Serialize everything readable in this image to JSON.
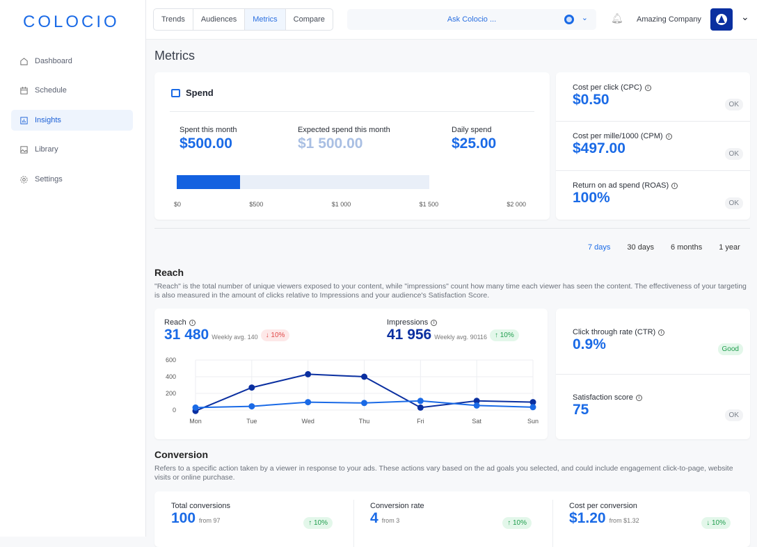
{
  "logo": "COLOCIO",
  "sidebar": {
    "items": [
      {
        "label": "Dashboard",
        "icon": "home-icon"
      },
      {
        "label": "Schedule",
        "icon": "calendar-icon"
      },
      {
        "label": "Insights",
        "icon": "chart-icon"
      },
      {
        "label": "Library",
        "icon": "image-icon"
      },
      {
        "label": "Settings",
        "icon": "gear-icon"
      }
    ]
  },
  "header": {
    "tabs": [
      "Trends",
      "Audiences",
      "Metrics",
      "Compare"
    ],
    "active_tab": "Metrics",
    "ask_placeholder": "Ask Colocio ...",
    "company": "Amazing Company"
  },
  "page_title": "Metrics",
  "spend": {
    "title": "Spend",
    "spent_label": "Spent this month",
    "spent": "$500.00",
    "expected_label": "Expected spend this month",
    "expected": "$1 500.00",
    "daily_label": "Daily spend",
    "daily": "$25.00",
    "progress_fraction": 0.25,
    "axis": [
      "$0",
      "$500",
      "$1 000",
      "$1 500",
      "$2 000"
    ]
  },
  "kpis": [
    {
      "label": "Cost per click (CPC)",
      "value": "$0.50",
      "status": "OK"
    },
    {
      "label": "Cost per mille/1000 (CPM)",
      "value": "$497.00",
      "status": "OK"
    },
    {
      "label": "Return on ad spend (ROAS)",
      "value": "100%",
      "status": "OK"
    }
  ],
  "periods": [
    "7 days",
    "30 days",
    "6 months",
    "1 year"
  ],
  "active_period": "7 days",
  "reach": {
    "title": "Reach",
    "description": "\"Reach\" is the total number of unique viewers exposed to your content, while \"impressions\" count how many time each viewer has seen the content. The effectiveness of your targeting is also measured in the amount of clicks relative to Impressions and your audience's Satisfaction Score.",
    "reach_label": "Reach",
    "reach_value": "31 480",
    "reach_avg": "Weekly avg. 140",
    "reach_change": "10%",
    "imp_label": "Impressions",
    "imp_value": "41 956",
    "imp_avg": "Weekly avg. 90116",
    "imp_change": "10%"
  },
  "chart_data": {
    "type": "line",
    "categories": [
      "Mon",
      "Tue",
      "Wed",
      "Thu",
      "Fri",
      "Sat",
      "Sun"
    ],
    "ylim": [
      0,
      600
    ],
    "yticks": [
      0,
      200,
      400,
      600
    ],
    "grid": true,
    "series": [
      {
        "name": "Impressions",
        "color": "#0a2fa0",
        "values": [
          -10,
          270,
          430,
          400,
          30,
          110,
          95
        ]
      },
      {
        "name": "Reach",
        "color": "#1a6ae6",
        "values": [
          30,
          45,
          95,
          85,
          110,
          55,
          35
        ]
      }
    ]
  },
  "side_kpis": [
    {
      "label": "Click through rate (CTR)",
      "value": "0.9%",
      "status": "Good"
    },
    {
      "label": "Satisfaction score",
      "value": "75",
      "status": "OK"
    }
  ],
  "conversion": {
    "title": "Conversion",
    "description": "Refers to a specific action taken by a viewer in response to your ads. These actions vary based on the ad goals you selected, and could include engagement click-to-page, website visits or online purchase.",
    "cards": [
      {
        "label": "Total conversions",
        "value": "100",
        "from": "from 97",
        "change": "10%",
        "dir": "up"
      },
      {
        "label": "Conversion rate",
        "value": "4",
        "from": "from 3",
        "change": "10%",
        "dir": "up"
      },
      {
        "label": "Cost per conversion",
        "value": "$1.20",
        "from": "from $1.32",
        "change": "10%",
        "dir": "down"
      }
    ]
  }
}
